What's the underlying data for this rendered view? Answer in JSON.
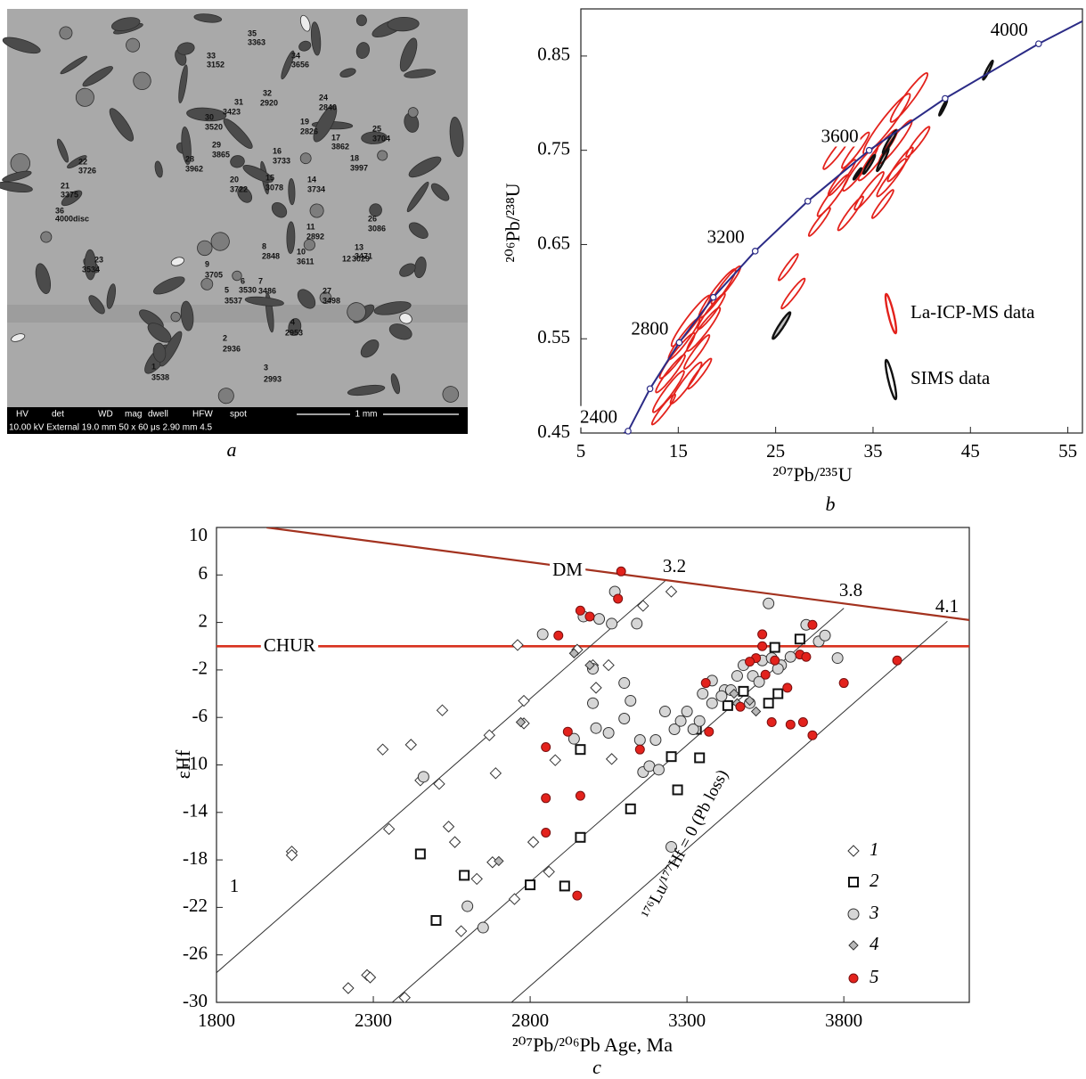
{
  "image_panel": {
    "caption": "a",
    "spots": [
      {
        "id": "35",
        "age": "3363"
      },
      {
        "id": "33",
        "age": "3152"
      },
      {
        "id": "34",
        "age": "3656"
      },
      {
        "id": "32",
        "age": "2920"
      },
      {
        "id": "24",
        "age": "2840"
      },
      {
        "id": "31",
        "age": "3423"
      },
      {
        "id": "30",
        "age": "3520"
      },
      {
        "id": "19",
        "age": "2826"
      },
      {
        "id": "25",
        "age": "3704"
      },
      {
        "id": "29",
        "age": "3865"
      },
      {
        "id": "17",
        "age": "3862"
      },
      {
        "id": "16",
        "age": "3733"
      },
      {
        "id": "28",
        "age": "3962"
      },
      {
        "id": "22",
        "age": "3726"
      },
      {
        "id": "18",
        "age": "3997"
      },
      {
        "id": "20",
        "age": "3722"
      },
      {
        "id": "15",
        "age": "3078"
      },
      {
        "id": "14",
        "age": "3734"
      },
      {
        "id": "21",
        "age": "3375"
      },
      {
        "id": "36",
        "age": "4000disc"
      },
      {
        "id": "26",
        "age": "3086"
      },
      {
        "id": "11",
        "age": "2892"
      },
      {
        "id": "13",
        "age": "3471"
      },
      {
        "id": "8",
        "age": "2848"
      },
      {
        "id": "10",
        "age": "3611"
      },
      {
        "id": "12",
        "age": "3029"
      },
      {
        "id": "23",
        "age": "3534"
      },
      {
        "id": "9",
        "age": "3705"
      },
      {
        "id": "6",
        "age": "3530"
      },
      {
        "id": "5",
        "age": "3537"
      },
      {
        "id": "7",
        "age": "3486"
      },
      {
        "id": "27",
        "age": "3498"
      },
      {
        "id": "4",
        "age": "2953"
      },
      {
        "id": "2",
        "age": "2936"
      },
      {
        "id": "1",
        "age": "3538"
      },
      {
        "id": "3",
        "age": "2993"
      }
    ],
    "info_bar": {
      "fields": [
        "HV",
        "det",
        "WD",
        "mag",
        "dwell",
        "HFW",
        "spot"
      ],
      "values": "10.00 kV External 19.0 mm 50 x 60 μs 2.90 mm 4.5",
      "scale": "1 mm"
    }
  },
  "chart_data": [
    {
      "type": "concordia",
      "caption": "b",
      "x_label": "²⁰⁷Pb/²³⁵U",
      "y_label": "²⁰⁶Pb/²³⁸U",
      "xlim": [
        5,
        56.5
      ],
      "ylim": [
        0.45,
        0.9
      ],
      "xticks": [
        5,
        15,
        25,
        35,
        45,
        55
      ],
      "yticks": [
        0.45,
        0.55,
        0.65,
        0.75,
        0.85
      ],
      "legend": "right",
      "concordia": {
        "color": "#2b2b86",
        "x": [
          9.4,
          9.85,
          12.1,
          15.1,
          18.6,
          22.9,
          28.3,
          34.6,
          42.4,
          52,
          56.5
        ],
        "values": [
          0.45,
          0.452,
          0.497,
          0.546,
          0.594,
          0.643,
          0.696,
          0.75,
          0.805,
          0.863,
          0.887
        ]
      },
      "age_points": {
        "x": [
          9.85,
          12.1,
          15.1,
          18.6,
          22.9,
          28.3,
          34.6,
          42.4,
          52
        ],
        "values": [
          0.452,
          0.497,
          0.546,
          0.594,
          0.643,
          0.696,
          0.75,
          0.805,
          0.863
        ],
        "labels": [
          2400,
          null,
          2800,
          null,
          3200,
          null,
          3600,
          null,
          4000
        ]
      },
      "series": [
        {
          "name": "La-ICP-MS data",
          "color": "#e3221c",
          "x": [
            13.5,
            14.2,
            14.9,
            15.6,
            16.3,
            16.9,
            17.6,
            18.4,
            19.0,
            19.9,
            15.8,
            17.2,
            26.3,
            26.8,
            29.5,
            30.9,
            31.8,
            32.7,
            33.7,
            34.6,
            35.5,
            36.4,
            37.3,
            37.8,
            38.7,
            39.6,
            36.9,
            33.2,
            36.0,
            14.0,
            31.4
          ],
          "values": [
            0.475,
            0.513,
            0.532,
            0.55,
            0.569,
            0.536,
            0.56,
            0.579,
            0.598,
            0.607,
            0.503,
            0.513,
            0.626,
            0.598,
            0.674,
            0.702,
            0.721,
            0.683,
            0.731,
            0.707,
            0.745,
            0.778,
            0.759,
            0.735,
            0.806,
            0.759,
            0.721,
            0.75,
            0.693,
            0.494,
            0.75
          ],
          "x_err": [
            1.2,
            1.5,
            1.8,
            1.6,
            2.0,
            1.3,
            1.7,
            1.4,
            1.9,
            1.5,
            1.6,
            1.2,
            1.0,
            1.2,
            1.1,
            1.6,
            1.4,
            1.3,
            1.8,
            1.5,
            2.0,
            2.4,
            1.7,
            1.3,
            1.9,
            1.2,
            1.5,
            1.4,
            1.1,
            1.6,
            1.5
          ],
          "y_err": [
            0.016,
            0.02,
            0.024,
            0.022,
            0.027,
            0.018,
            0.023,
            0.019,
            0.026,
            0.02,
            0.022,
            0.016,
            0.014,
            0.016,
            0.015,
            0.022,
            0.019,
            0.018,
            0.024,
            0.02,
            0.027,
            0.032,
            0.023,
            0.018,
            0.026,
            0.016,
            0.02,
            0.019,
            0.015,
            0.022,
            0.02
          ]
        },
        {
          "name": "SIMS data",
          "color": "#111111",
          "x": [
            25.6,
            33.4,
            34.6,
            36.0,
            36.7,
            42.2,
            46.8
          ],
          "values": [
            0.564,
            0.725,
            0.735,
            0.74,
            0.759,
            0.795,
            0.835
          ],
          "x_err": [
            0.9,
            0.4,
            0.6,
            0.6,
            0.7,
            0.4,
            0.5
          ],
          "y_err": [
            0.014,
            0.006,
            0.01,
            0.012,
            0.012,
            0.008,
            0.01
          ]
        }
      ]
    },
    {
      "type": "scatter",
      "caption": "c",
      "x_label": "²⁰⁷Pb/²⁰⁶Pb Age, Ma",
      "y_label": "εHf",
      "xlim": [
        1800,
        4200
      ],
      "ylim": [
        -30,
        10
      ],
      "xticks": [
        1800,
        2300,
        2800,
        3300,
        3800
      ],
      "yticks": [
        -30,
        -26,
        -22,
        -18,
        -14,
        -10,
        -6,
        -2,
        2,
        6,
        10
      ],
      "legend": "lower right",
      "reference_lines": [
        {
          "label": "DM",
          "color": "#a3321f",
          "x": [
            1960,
            4200
          ],
          "values": [
            10,
            2.2
          ]
        },
        {
          "label": "CHUR",
          "color": "#d8321f",
          "x": [
            1800,
            4200
          ],
          "values": [
            0,
            0
          ]
        },
        {
          "label": "3.2",
          "color": "#333333",
          "x": [
            1800,
            3230
          ],
          "values": [
            -27.5,
            5.5
          ]
        },
        {
          "label": "3.8",
          "color": "#333333",
          "x": [
            2360,
            3800
          ],
          "values": [
            -30,
            3.2
          ]
        },
        {
          "label": "4.1",
          "color": "#333333",
          "x": [
            2740,
            4130
          ],
          "values": [
            -30,
            2.1
          ]
        }
      ],
      "annotations": [
        "1",
        "¹⁷⁶Lu/¹⁷⁷Hf = 0 (Pb loss)"
      ],
      "series": [
        {
          "name": "1",
          "marker": "diamond",
          "color": "#ffffff",
          "x": [
            2040,
            2040,
            2220,
            2280,
            2290,
            2330,
            2350,
            2420,
            2450,
            2520,
            2510,
            2540,
            2560,
            2580,
            2630,
            2670,
            2680,
            2690,
            2750,
            2760,
            2780,
            2780,
            2810,
            2860,
            2880,
            2950,
            3000,
            3010,
            3050,
            3060,
            3160,
            3250,
            2400
          ],
          "values": [
            -17.3,
            -17.6,
            -28.8,
            -27.7,
            -27.9,
            -8.7,
            -15.4,
            -8.3,
            -11.3,
            -5.4,
            -11.6,
            -15.2,
            -16.5,
            -24,
            -19.6,
            -7.5,
            -18.2,
            -10.7,
            -21.3,
            0.1,
            -6.5,
            -4.6,
            -16.5,
            -19,
            -9.6,
            -0.3,
            -1.6,
            -3.5,
            -1.6,
            -9.5,
            3.4,
            4.6,
            -29.6
          ]
        },
        {
          "name": "2",
          "marker": "square",
          "color": "#ffffff",
          "x": [
            2450,
            2500,
            2590,
            2800,
            2910,
            2960,
            2960,
            3120,
            3250,
            3270,
            3330,
            3340,
            3430,
            3480,
            3560,
            3580,
            3660,
            3590
          ],
          "values": [
            -17.5,
            -23.1,
            -19.3,
            -20.1,
            -20.2,
            -8.7,
            -16.1,
            -13.7,
            -9.3,
            -12.1,
            -7,
            -9.4,
            -5,
            -3.8,
            -4.8,
            -0.1,
            0.6,
            -4
          ]
        },
        {
          "name": "3",
          "marker": "circle",
          "color": "#d6d6d6",
          "x": [
            2460,
            2600,
            2650,
            2840,
            2970,
            3020,
            3060,
            3070,
            3000,
            2940,
            3010,
            3050,
            3100,
            3120,
            3150,
            3160,
            3180,
            3200,
            3230,
            3260,
            3280,
            3300,
            3320,
            3340,
            3350,
            3380,
            3420,
            3460,
            3480,
            3510,
            3540,
            3560,
            3570,
            3600,
            3630,
            3680,
            3720,
            3740,
            3780,
            3250,
            3210,
            3100,
            3000,
            3140,
            3440,
            3500,
            3530,
            3590,
            3380,
            3410
          ],
          "values": [
            -11,
            -21.9,
            -23.7,
            1,
            2.5,
            2.3,
            1.9,
            4.6,
            -1.9,
            -7.8,
            -6.9,
            -7.3,
            -6.1,
            -4.6,
            -7.9,
            -10.6,
            -10.1,
            -7.9,
            -5.5,
            -7,
            -6.3,
            -5.5,
            -7,
            -6.3,
            -4,
            -2.9,
            -3.7,
            -2.5,
            -1.6,
            -2.5,
            -1.2,
            3.6,
            -1,
            -1.6,
            -0.9,
            1.8,
            0.4,
            0.9,
            -1,
            -16.9,
            -10.4,
            -3.1,
            -4.8,
            1.9,
            -3.7,
            -4.8,
            -3,
            -1.9,
            -4.8,
            -4.2
          ]
        },
        {
          "name": "4",
          "marker": "diamond",
          "color": "#b8b8b8",
          "x": [
            2990,
            2940,
            3500,
            3450,
            3460,
            3520,
            2770,
            2700
          ],
          "values": [
            -1.6,
            -0.6,
            -4.6,
            -4,
            -4.8,
            -5.5,
            -6.4,
            -18.1
          ]
        },
        {
          "name": "5",
          "marker": "circle",
          "color": "#e3221c",
          "x": [
            2890,
            2850,
            2920,
            2960,
            2990,
            3090,
            3080,
            2960,
            2850,
            2850,
            2950,
            3150,
            3360,
            3370,
            3540,
            3540,
            3550,
            3520,
            3580,
            3630,
            3570,
            3620,
            3660,
            3680,
            3700,
            3670,
            3700,
            3800,
            3970,
            3470,
            3500
          ],
          "values": [
            0.9,
            -8.5,
            -7.2,
            3,
            2.5,
            6.3,
            4,
            -12.6,
            -12.8,
            -15.7,
            -21,
            -8.7,
            -3.1,
            -7.2,
            1,
            0,
            -2.4,
            -1,
            -1.2,
            -6.6,
            -6.4,
            -3.5,
            -0.7,
            -0.9,
            1.8,
            -6.4,
            -7.5,
            -3.1,
            -1.2,
            -5.1,
            -1.3
          ]
        }
      ]
    }
  ]
}
